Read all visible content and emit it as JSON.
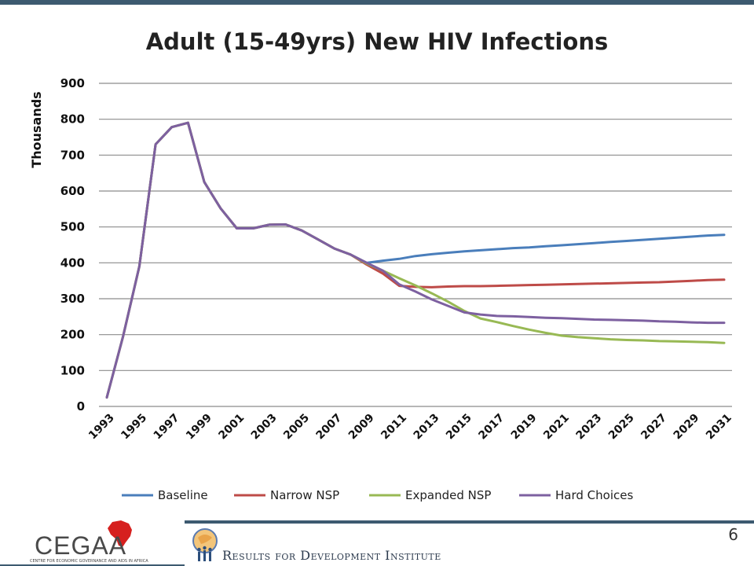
{
  "chart_data": {
    "type": "line",
    "title": "Adult (15-49yrs) New HIV Infections",
    "ylabel": "Thousands",
    "xlabel": "",
    "ylim": [
      0,
      900
    ],
    "yticks": [
      "0",
      "100",
      "200",
      "300",
      "400",
      "500",
      "600",
      "700",
      "800",
      "900"
    ],
    "xticks": [
      "1993",
      "1995",
      "1997",
      "1999",
      "2001",
      "2003",
      "2005",
      "2007",
      "2009",
      "2011",
      "2013",
      "2015",
      "2017",
      "2019",
      "2021",
      "2023",
      "2025",
      "2027",
      "2029",
      "2031"
    ],
    "x": [
      1993,
      1994,
      1995,
      1996,
      1997,
      1998,
      1999,
      2000,
      2001,
      2002,
      2003,
      2004,
      2005,
      2006,
      2007,
      2008,
      2009,
      2010,
      2011,
      2012,
      2013,
      2014,
      2015,
      2016,
      2017,
      2018,
      2019,
      2020,
      2021,
      2022,
      2023,
      2024,
      2025,
      2026,
      2027,
      2028,
      2029,
      2030,
      2031
    ],
    "grid": true,
    "legend_position": "bottom",
    "series": [
      {
        "name": "Baseline",
        "color": "#4a7ebb",
        "values": [
          25,
          195,
          390,
          730,
          778,
          790,
          625,
          552,
          496,
          496,
          506,
          507,
          490,
          465,
          440,
          423,
          400,
          406,
          411,
          419,
          424,
          428,
          432,
          435,
          438,
          441,
          443,
          446,
          449,
          452,
          455,
          458,
          461,
          464,
          467,
          470,
          473,
          476,
          478
        ]
      },
      {
        "name": "Narrow NSP",
        "color": "#be4b48",
        "values": [
          25,
          195,
          390,
          730,
          778,
          790,
          625,
          552,
          496,
          496,
          506,
          507,
          490,
          465,
          440,
          423,
          395,
          370,
          336,
          333,
          332,
          334,
          335,
          335,
          336,
          337,
          338,
          339,
          340,
          341,
          342,
          343,
          344,
          345,
          346,
          348,
          350,
          352,
          353
        ]
      },
      {
        "name": "Expanded NSP",
        "color": "#98b954",
        "values": [
          25,
          195,
          390,
          730,
          778,
          790,
          625,
          552,
          496,
          496,
          506,
          507,
          490,
          465,
          440,
          423,
          398,
          378,
          357,
          337,
          315,
          292,
          266,
          245,
          235,
          224,
          214,
          205,
          197,
          193,
          190,
          187,
          185,
          184,
          182,
          181,
          180,
          179,
          177
        ]
      },
      {
        "name": "Hard Choices",
        "color": "#7d60a0",
        "values": [
          25,
          195,
          390,
          730,
          778,
          790,
          625,
          552,
          496,
          496,
          506,
          507,
          490,
          465,
          440,
          423,
          400,
          378,
          340,
          320,
          298,
          280,
          262,
          256,
          252,
          251,
          249,
          247,
          246,
          244,
          242,
          241,
          240,
          239,
          237,
          236,
          234,
          233,
          233
        ]
      }
    ]
  },
  "page": {
    "page_number": "6",
    "cegaa_logo_text": "CEGAA",
    "cegaa_subtitle": "CENTRE FOR ECONOMIC GOVERNANCE AND AIDS IN AFRICA",
    "rdi_text": "Results for Development Institute"
  },
  "colors": {
    "accent_bar": "#3d5a70",
    "grid": "#8c8c8c",
    "cegaa_africa_red": "#d6201f"
  }
}
